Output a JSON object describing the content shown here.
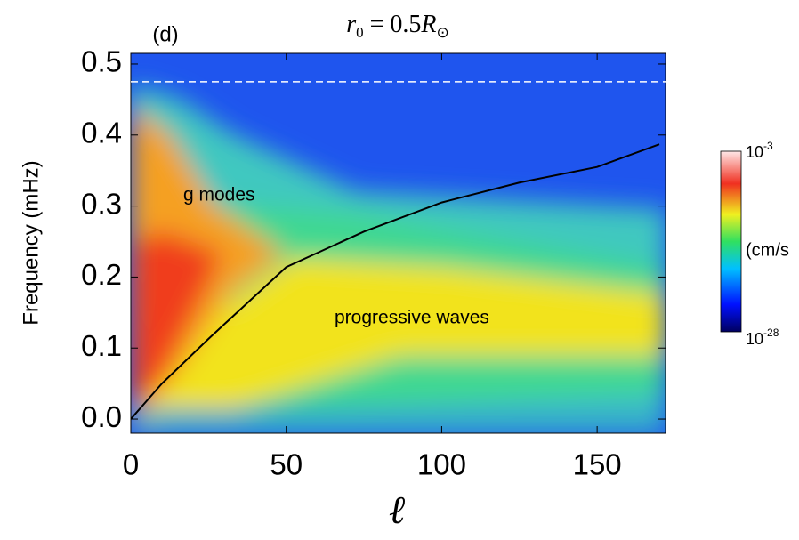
{
  "chart_data": {
    "type": "line",
    "title": [
      {
        "text": "r",
        "italic": true
      },
      {
        "text": "0",
        "sub": true
      },
      {
        "text": " = 0.5"
      },
      {
        "text": "R",
        "italic": true
      },
      {
        "text": "⊙",
        "sub": true
      }
    ],
    "panel_label": "(d)",
    "xlabel": "ℓ",
    "ylabel": "Frequency (mHz)",
    "annotations": [
      "g modes",
      "progressive waves"
    ],
    "x": [
      0,
      10,
      25,
      50,
      75,
      100,
      125,
      150,
      170
    ],
    "series": [
      {
        "color": "#000000",
        "values": [
          0,
          0.05,
          0.113,
          0.214,
          0.264,
          0.305,
          0.333,
          0.355,
          0.387
        ]
      }
    ],
    "reference_line": {
      "value": 0.475,
      "color": "#ffffff",
      "dashed": true
    },
    "xlim": [
      0,
      172
    ],
    "ylim": [
      -0.02,
      0.515
    ],
    "xticks": [
      0,
      50,
      100,
      150
    ],
    "yticks": [
      {
        "value": 0,
        "label": "0.0"
      },
      0.1,
      0.2,
      0.3,
      0.4,
      0.5
    ],
    "colorbar": {
      "top": {
        "base": "10",
        "exp": "-3"
      },
      "middle": "(cm/s",
      "bottom": {
        "base": "10",
        "exp": "-28"
      }
    }
  }
}
